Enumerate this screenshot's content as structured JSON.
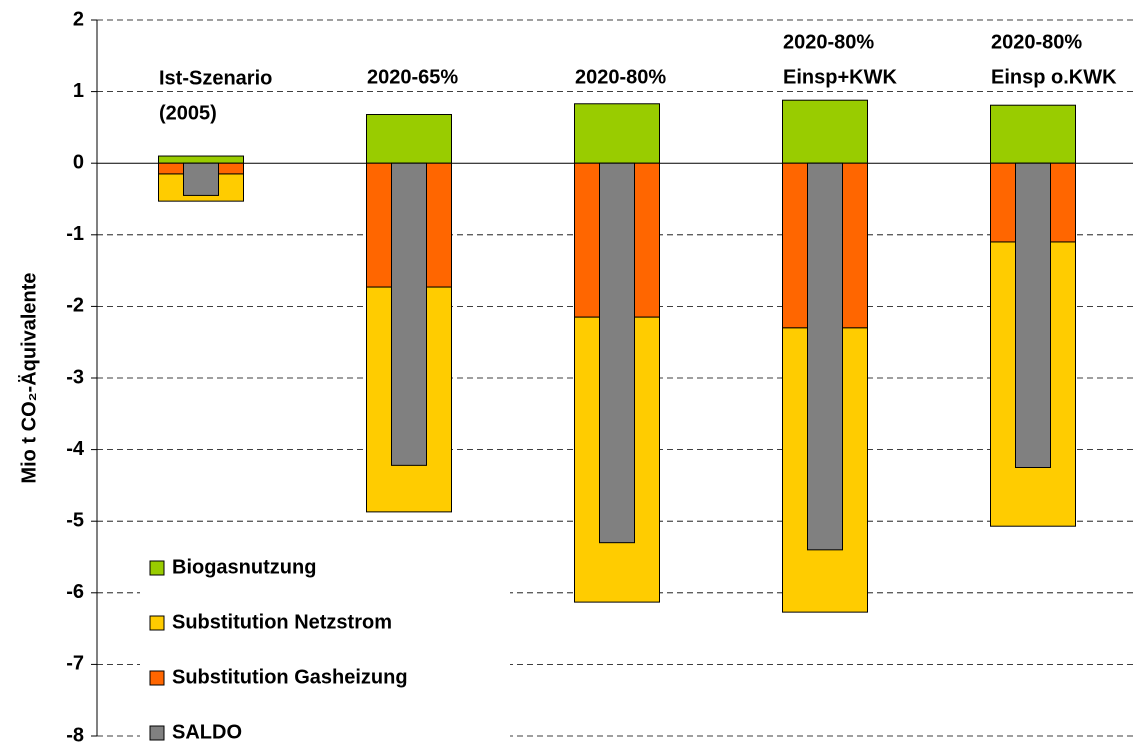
{
  "chart_data": {
    "type": "bar",
    "y_label": "Mio t CO₂-Äquivalente",
    "categories": [
      [
        "Ist-Szenario",
        "(2005)"
      ],
      [
        "2020-65%"
      ],
      [
        "2020-80%"
      ],
      [
        "2020-80%",
        "Einsp+KWK"
      ],
      [
        "2020-80%",
        "Einsp o.KWK"
      ]
    ],
    "series": [
      {
        "name": "Biogasnutzung",
        "color": "#99cc00",
        "values": [
          0.1,
          0.68,
          0.83,
          0.88,
          0.81
        ]
      },
      {
        "name": "Substitution Netzstrom",
        "color": "#ffcc00",
        "values": [
          -0.38,
          -3.14,
          -3.98,
          -3.97,
          -3.97
        ]
      },
      {
        "name": "Substitution Gasheizung",
        "color": "#ff6600",
        "values": [
          -0.15,
          -1.73,
          -2.15,
          -2.3,
          -1.1
        ]
      },
      {
        "name": "SALDO",
        "color": "#808080",
        "values": [
          -0.45,
          -4.22,
          -5.3,
          -5.4,
          -4.25
        ]
      }
    ],
    "ylim": [
      -8,
      2
    ],
    "yticks": [
      -8,
      -7,
      -6,
      -5,
      -4,
      -3,
      -2,
      -1,
      0,
      1,
      2
    ],
    "grid": true,
    "legend": "lower left"
  }
}
